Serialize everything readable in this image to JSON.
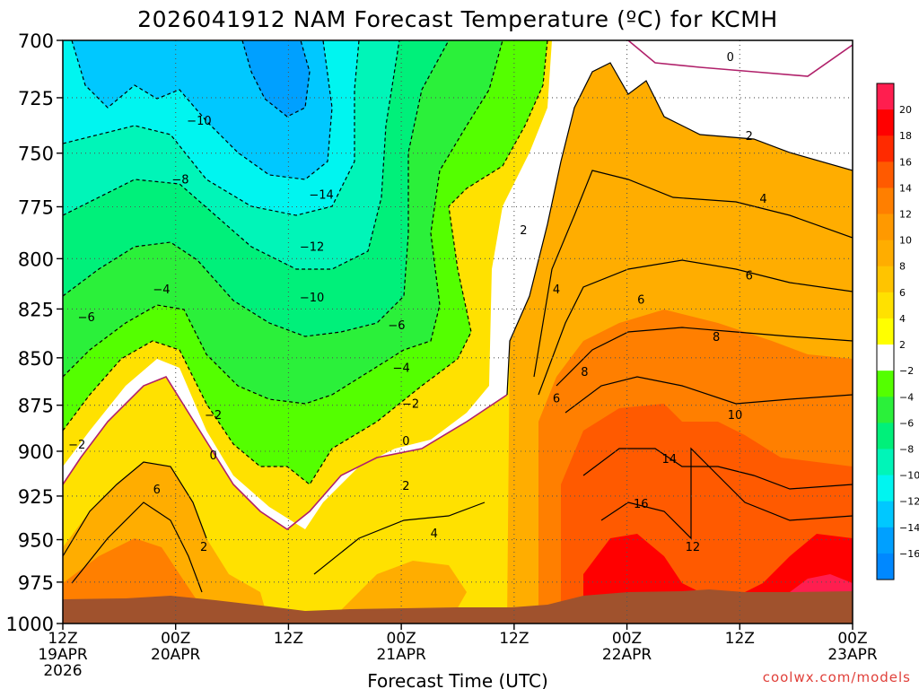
{
  "chart_data": {
    "type": "heatmap",
    "title": "2026041912 NAM Forecast Temperature (ºC) for KCMH",
    "xlabel": "Forecast Time (UTC)",
    "ylabel": "",
    "x_ticks": [
      {
        "line1": "12Z",
        "line2": "19APR",
        "line3": "2026"
      },
      {
        "line1": "00Z",
        "line2": "20APR",
        "line3": ""
      },
      {
        "line1": "12Z",
        "line2": "",
        "line3": ""
      },
      {
        "line1": "00Z",
        "line2": "21APR",
        "line3": ""
      },
      {
        "line1": "12Z",
        "line2": "",
        "line3": ""
      },
      {
        "line1": "00Z",
        "line2": "22APR",
        "line3": ""
      },
      {
        "line1": "12Z",
        "line2": "",
        "line3": ""
      },
      {
        "line1": "00Z",
        "line2": "23APR",
        "line3": ""
      }
    ],
    "x_range_hours": [
      0,
      84
    ],
    "y_levels_hpa": [
      700,
      725,
      750,
      775,
      800,
      825,
      850,
      875,
      900,
      925,
      950,
      975,
      1000
    ],
    "y_range_hpa": [
      700,
      1000
    ],
    "y_scale": "log-pressure",
    "grid": true,
    "colorbar": {
      "position": "right",
      "labels": [
        "20",
        "18",
        "16",
        "14",
        "12",
        "10",
        "8",
        "6",
        "4",
        "2",
        "−2",
        "−4",
        "−6",
        "−8",
        "−10",
        "−12",
        "−14",
        "−16"
      ],
      "colors": [
        "#ff1e4f",
        "#ff0000",
        "#ff2a00",
        "#ff5a00",
        "#ff7f00",
        "#ff9900",
        "#ffad00",
        "#ffc400",
        "#ffe100",
        "#ffff00",
        "#ffffff",
        "#54ff00",
        "#2bf03a",
        "#00f07a",
        "#00f5b8",
        "#00f5f0",
        "#00c8ff",
        "#00a0ff",
        "#0088ff"
      ]
    },
    "contour_labels": [
      {
        "text": "0",
        "hour": 71.0,
        "hpa": 707
      },
      {
        "text": "2",
        "hour": 73.0,
        "hpa": 742
      },
      {
        "text": "4",
        "hour": 74.5,
        "hpa": 771
      },
      {
        "text": "6",
        "hour": 73.0,
        "hpa": 808
      },
      {
        "text": "8",
        "hour": 69.5,
        "hpa": 839
      },
      {
        "text": "10",
        "hour": 71.5,
        "hpa": 880
      },
      {
        "text": "14",
        "hour": 64.5,
        "hpa": 904
      },
      {
        "text": "16",
        "hour": 61.5,
        "hpa": 929
      },
      {
        "text": "12",
        "hour": 67.0,
        "hpa": 954
      },
      {
        "text": "6",
        "hour": 61.5,
        "hpa": 820
      },
      {
        "text": "8",
        "hour": 55.5,
        "hpa": 857
      },
      {
        "text": "6",
        "hour": 52.5,
        "hpa": 871
      },
      {
        "text": "4",
        "hour": 52.5,
        "hpa": 815
      },
      {
        "text": "2",
        "hour": 49.0,
        "hpa": 786
      },
      {
        "text": "4",
        "hour": 39.5,
        "hpa": 946
      },
      {
        "text": "2",
        "hour": 36.5,
        "hpa": 919
      },
      {
        "text": "0",
        "hour": 36.5,
        "hpa": 894
      },
      {
        "text": "−2",
        "hour": 37.0,
        "hpa": 874
      },
      {
        "text": "−4",
        "hour": 36.0,
        "hpa": 855
      },
      {
        "text": "−6",
        "hour": 35.5,
        "hpa": 833
      },
      {
        "text": "−10",
        "hour": 26.5,
        "hpa": 819
      },
      {
        "text": "−12",
        "hour": 26.5,
        "hpa": 794
      },
      {
        "text": "−14",
        "hour": 27.5,
        "hpa": 769
      },
      {
        "text": "−10",
        "hour": 14.5,
        "hpa": 735
      },
      {
        "text": "−8",
        "hour": 12.5,
        "hpa": 762
      },
      {
        "text": "−6",
        "hour": 2.5,
        "hpa": 829
      },
      {
        "text": "−4",
        "hour": 10.5,
        "hpa": 815
      },
      {
        "text": "−2",
        "hour": 16.0,
        "hpa": 880
      },
      {
        "text": "−2",
        "hour": 1.5,
        "hpa": 896
      },
      {
        "text": "0",
        "hour": 16.0,
        "hpa": 902
      },
      {
        "text": "6",
        "hour": 10.0,
        "hpa": 921
      },
      {
        "text": "2",
        "hour": 15.0,
        "hpa": 954
      }
    ]
  },
  "credit": "coolwx.com/models"
}
